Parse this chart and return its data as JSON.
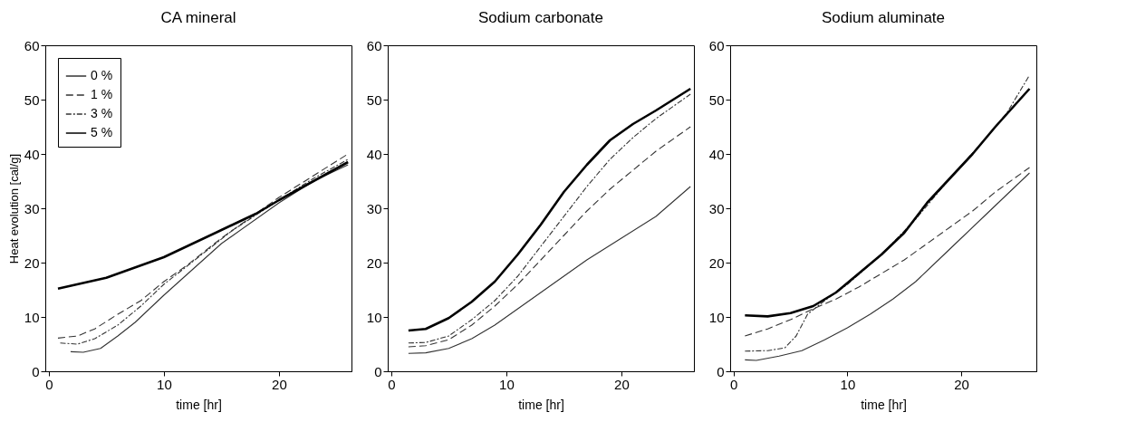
{
  "chart_data": [
    {
      "type": "line",
      "title": "CA mineral",
      "xlabel": "time [hr]",
      "ylabel": "Heat evolution [cal/g]",
      "xlim": [
        -0.3,
        26.3
      ],
      "xticks": [
        0,
        10,
        20
      ],
      "ylim": [
        0,
        60
      ],
      "yticks": [
        0,
        10,
        20,
        30,
        40,
        50,
        60
      ],
      "grid": false,
      "legend": "top left",
      "marker": "none",
      "series": [
        {
          "name": "0 %",
          "color": "#333333",
          "line_style": "solid",
          "x": [
            1.9,
            3,
            4.5,
            6,
            7.5,
            10,
            15,
            20,
            23,
            26
          ],
          "values": [
            3.6,
            3.5,
            4.2,
            6.5,
            9,
            14,
            23.5,
            31,
            35,
            38
          ]
        },
        {
          "name": "1 %",
          "color": "#333333",
          "line_style": "dashed",
          "x": [
            0.8,
            2.5,
            4,
            6,
            8,
            10,
            12,
            15,
            18,
            20,
            23,
            26
          ],
          "values": [
            6.1,
            6.5,
            7.8,
            10.5,
            13,
            16.5,
            19.5,
            24.5,
            29,
            32,
            36,
            40
          ]
        },
        {
          "name": "3 %",
          "color": "#333333",
          "line_style": "dotted",
          "x": [
            1,
            2.5,
            4,
            6,
            8,
            10,
            13,
            16,
            20,
            23,
            26
          ],
          "values": [
            5.2,
            5,
            6,
            8.5,
            12,
            16,
            21,
            26,
            31.5,
            35.5,
            39
          ]
        },
        {
          "name": "5 %",
          "color": "#000000",
          "line_style": "solid",
          "x": [
            0.8,
            5,
            10,
            15,
            18,
            20,
            23,
            26
          ],
          "values": [
            15.2,
            17.2,
            21,
            26,
            29,
            31.5,
            35,
            38.5
          ]
        }
      ]
    },
    {
      "type": "line",
      "title": "Sodium carbonate",
      "xlabel": "time [hr]",
      "xlim": [
        -0.3,
        26.3
      ],
      "xticks": [
        0,
        10,
        20
      ],
      "ylim": [
        0,
        60
      ],
      "yticks": [
        0,
        10,
        20,
        30,
        40,
        50,
        60
      ],
      "grid": false,
      "marker": "none",
      "series": [
        {
          "color": "#333333",
          "line_style": "solid",
          "x": [
            1.5,
            3,
            5,
            7,
            9,
            11,
            13,
            15,
            17,
            20,
            23,
            26
          ],
          "values": [
            3.3,
            3.4,
            4.2,
            6,
            8.5,
            11.5,
            14.5,
            17.5,
            20.5,
            24.5,
            28.5,
            34
          ]
        },
        {
          "color": "#333333",
          "line_style": "dashed",
          "x": [
            1.5,
            3,
            5,
            7,
            9,
            11,
            13,
            15,
            17,
            19,
            21,
            23,
            26
          ],
          "values": [
            4.5,
            4.7,
            5.8,
            8.5,
            12,
            16,
            20.5,
            25,
            29.5,
            33.5,
            37,
            40.5,
            45
          ]
        },
        {
          "color": "#333333",
          "line_style": "dotted",
          "x": [
            1.5,
            3,
            5,
            7,
            9,
            11,
            13,
            15,
            17,
            19,
            21,
            23,
            26
          ],
          "values": [
            5.2,
            5.3,
            6.5,
            9.5,
            13,
            17.5,
            23,
            28.5,
            34,
            39,
            43,
            46.5,
            51
          ]
        },
        {
          "color": "#000000",
          "line_style": "solid",
          "x": [
            1.5,
            3,
            5,
            7,
            9,
            11,
            13,
            15,
            17,
            19,
            21,
            23,
            26
          ],
          "values": [
            7.5,
            7.8,
            9.8,
            12.8,
            16.5,
            21.5,
            27,
            33,
            38,
            42.5,
            45.5,
            48,
            52
          ]
        }
      ]
    },
    {
      "type": "line",
      "title": "Sodium aluminate",
      "xlabel": "time [hr]",
      "xlim": [
        -0.3,
        26.6
      ],
      "xticks": [
        0,
        10,
        20
      ],
      "ylim": [
        0,
        60
      ],
      "yticks": [
        0,
        10,
        20,
        30,
        40,
        50,
        60
      ],
      "grid": false,
      "marker": "none",
      "series": [
        {
          "color": "#333333",
          "line_style": "solid",
          "x": [
            1,
            2,
            4,
            6,
            8,
            10,
            12,
            14,
            16,
            18,
            20,
            22,
            24,
            26
          ],
          "values": [
            2.1,
            2,
            2.8,
            3.8,
            5.8,
            8,
            10.5,
            13.3,
            16.5,
            20.5,
            24.5,
            28.5,
            32.5,
            36.5
          ]
        },
        {
          "color": "#333333",
          "line_style": "dashed",
          "x": [
            1,
            3,
            5,
            7,
            9,
            11,
            13,
            15,
            17,
            19,
            21,
            23,
            26
          ],
          "values": [
            6.5,
            7.8,
            9.5,
            11.5,
            13.3,
            15.5,
            18,
            20.5,
            23.5,
            26.5,
            29.5,
            33,
            37.5
          ]
        },
        {
          "color": "#333333",
          "line_style": "dotted",
          "x": [
            1,
            3,
            4.5,
            5.5,
            6.5,
            8,
            10,
            13,
            16,
            19,
            22,
            24,
            26
          ],
          "values": [
            3.7,
            3.8,
            4.3,
            6.5,
            10.5,
            13,
            16,
            21.5,
            28,
            35.5,
            42.5,
            47.5,
            54.5
          ]
        },
        {
          "color": "#000000",
          "line_style": "solid",
          "x": [
            1,
            3,
            5,
            7,
            9,
            11,
            13,
            15,
            17,
            19,
            21,
            23,
            26
          ],
          "values": [
            10.3,
            10.1,
            10.7,
            12,
            14.5,
            18,
            21.5,
            25.5,
            31,
            35.5,
            40,
            45,
            52
          ]
        }
      ]
    }
  ]
}
